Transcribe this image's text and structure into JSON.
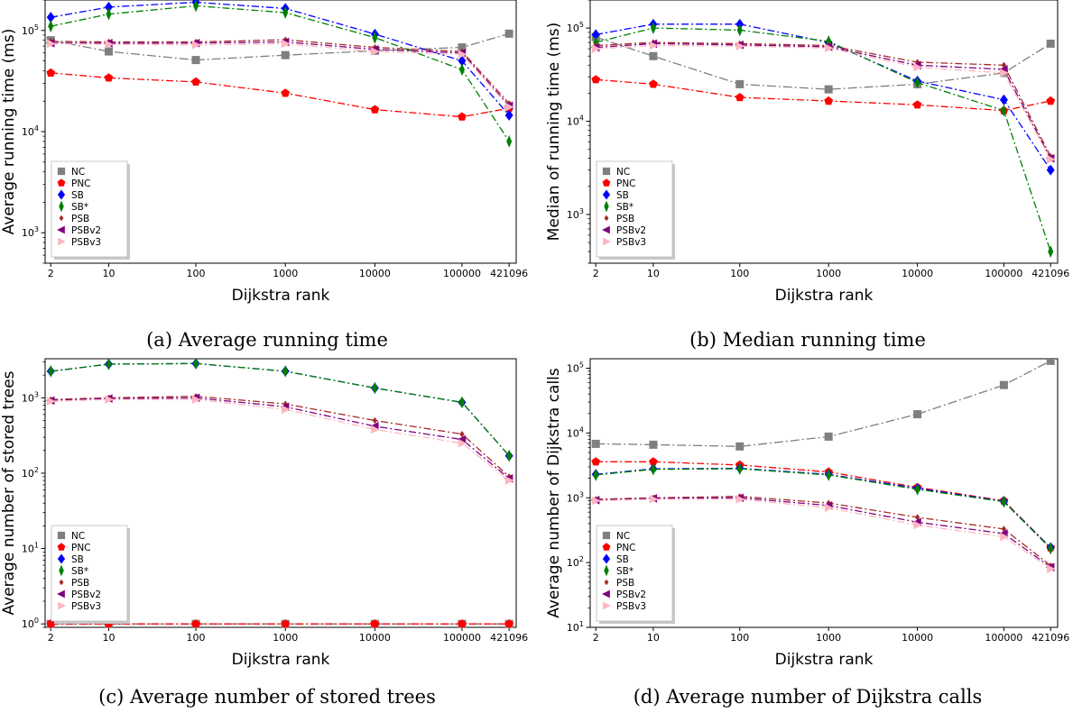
{
  "chart_data": [
    {
      "type": "line",
      "panel": "a",
      "caption": "(a) Average running time",
      "xlabel": "Dijkstra rank",
      "ylabel": "Average running time (ms)",
      "yscale": "log",
      "ylim": [
        500,
        200000
      ],
      "x": [
        "2",
        "10",
        "100",
        "1000",
        "10000",
        "100000",
        "421096"
      ],
      "xtick_labels": [
        "2",
        "10",
        "100",
        "1000",
        "10000",
        "100000",
        "421096"
      ],
      "ytick_labels": [
        {
          "base": "10",
          "exp": "3",
          "value": 1000
        },
        {
          "base": "10",
          "exp": "4",
          "value": 10000
        },
        {
          "base": "10",
          "exp": "5",
          "value": 100000
        }
      ],
      "legend_position": "lower-left",
      "series": [
        {
          "name": "NC",
          "values": [
            80000,
            62000,
            51000,
            57000,
            63000,
            68000,
            93000
          ]
        },
        {
          "name": "PNC",
          "values": [
            38000,
            34000,
            31000,
            24000,
            16500,
            14000,
            17000
          ]
        },
        {
          "name": "SB",
          "values": [
            135000,
            170000,
            190000,
            165000,
            92000,
            50000,
            14500
          ]
        },
        {
          "name": "SB*",
          "values": [
            110000,
            145000,
            175000,
            150000,
            85000,
            41000,
            8000
          ]
        },
        {
          "name": "PSB",
          "values": [
            78000,
            77000,
            77000,
            81000,
            68000,
            62000,
            19000
          ]
        },
        {
          "name": "PSBv2",
          "values": [
            75000,
            75000,
            75000,
            77000,
            65000,
            60000,
            18000
          ]
        },
        {
          "name": "PSBv3",
          "values": [
            74000,
            73000,
            72000,
            74000,
            62000,
            58000,
            17500
          ]
        }
      ]
    },
    {
      "type": "line",
      "panel": "b",
      "caption": "(b) Median running time",
      "xlabel": "Dijkstra rank",
      "ylabel": "Median of running time (ms)",
      "yscale": "log",
      "ylim": [
        300,
        200000
      ],
      "x": [
        "2",
        "10",
        "100",
        "1000",
        "10000",
        "100000",
        "421096"
      ],
      "xtick_labels": [
        "2",
        "10",
        "100",
        "1000",
        "10000",
        "100000",
        "421096"
      ],
      "ytick_labels": [
        {
          "base": "10",
          "exp": "3",
          "value": 1000
        },
        {
          "base": "10",
          "exp": "4",
          "value": 10000
        },
        {
          "base": "10",
          "exp": "5",
          "value": 100000
        }
      ],
      "legend_position": "lower-left",
      "series": [
        {
          "name": "NC",
          "values": [
            80000,
            50000,
            25000,
            22000,
            25000,
            33000,
            68000
          ]
        },
        {
          "name": "PNC",
          "values": [
            28000,
            25000,
            18000,
            16500,
            15000,
            13000,
            16500
          ]
        },
        {
          "name": "SB",
          "values": [
            85000,
            110000,
            110000,
            70000,
            27000,
            17000,
            3000
          ]
        },
        {
          "name": "SB*",
          "values": [
            70000,
            100000,
            95000,
            72000,
            26000,
            13000,
            400
          ]
        },
        {
          "name": "PSB",
          "values": [
            65000,
            70000,
            68000,
            65000,
            43000,
            40000,
            4200
          ]
        },
        {
          "name": "PSBv2",
          "values": [
            62000,
            68000,
            66000,
            63000,
            40000,
            36000,
            4000
          ]
        },
        {
          "name": "PSBv3",
          "values": [
            60000,
            65000,
            64000,
            61000,
            38000,
            33000,
            3900
          ]
        }
      ]
    },
    {
      "type": "line",
      "panel": "c",
      "caption": "(c) Average number of stored trees",
      "xlabel": "Dijkstra rank",
      "ylabel": "Average number of stored trees",
      "yscale": "log",
      "ylim": [
        0.9,
        3300
      ],
      "x": [
        "2",
        "10",
        "100",
        "1000",
        "10000",
        "100000",
        "421096"
      ],
      "xtick_labels": [
        "2",
        "10",
        "100",
        "1000",
        "10000",
        "100000",
        "421096"
      ],
      "ytick_labels": [
        {
          "base": "10",
          "exp": "0",
          "value": 1
        },
        {
          "base": "10",
          "exp": "1",
          "value": 10
        },
        {
          "base": "10",
          "exp": "2",
          "value": 100
        },
        {
          "base": "10",
          "exp": "3",
          "value": 1000
        }
      ],
      "legend_position": "lower-left",
      "series": [
        {
          "name": "NC",
          "values": [
            1,
            1,
            1,
            1,
            1,
            1,
            1
          ]
        },
        {
          "name": "PNC",
          "values": [
            1,
            1,
            1,
            1,
            1,
            1,
            1
          ]
        },
        {
          "name": "SB",
          "values": [
            2250,
            2800,
            2850,
            2250,
            1350,
            870,
            170
          ]
        },
        {
          "name": "SB*",
          "values": [
            2250,
            2800,
            2850,
            2250,
            1350,
            870,
            170
          ]
        },
        {
          "name": "PSB",
          "values": [
            950,
            1000,
            1050,
            830,
            500,
            330,
            90
          ]
        },
        {
          "name": "PSBv2",
          "values": [
            920,
            980,
            1000,
            760,
            420,
            280,
            85
          ]
        },
        {
          "name": "PSBv3",
          "values": [
            900,
            950,
            950,
            700,
            380,
            250,
            80
          ]
        }
      ]
    },
    {
      "type": "line",
      "panel": "d",
      "caption": "(d) Average number of Dijkstra calls",
      "xlabel": "Dijkstra rank",
      "ylabel": "Average number of Dijkstra calls",
      "yscale": "log",
      "ylim": [
        10,
        140000
      ],
      "x": [
        "2",
        "10",
        "100",
        "1000",
        "10000",
        "100000",
        "421096"
      ],
      "xtick_labels": [
        "2",
        "10",
        "100",
        "1000",
        "10000",
        "100000",
        "421096"
      ],
      "ytick_labels": [
        {
          "base": "10",
          "exp": "1",
          "value": 10
        },
        {
          "base": "10",
          "exp": "2",
          "value": 100
        },
        {
          "base": "10",
          "exp": "3",
          "value": 1000
        },
        {
          "base": "10",
          "exp": "4",
          "value": 10000
        },
        {
          "base": "10",
          "exp": "5",
          "value": 100000
        }
      ],
      "legend_position": "lower-left",
      "series": [
        {
          "name": "NC",
          "values": [
            6800,
            6600,
            6200,
            8800,
            19500,
            55000,
            130000
          ]
        },
        {
          "name": "PNC",
          "values": [
            3600,
            3600,
            3200,
            2500,
            1450,
            900,
            170
          ]
        },
        {
          "name": "SB",
          "values": [
            2300,
            2800,
            2850,
            2300,
            1400,
            880,
            170
          ]
        },
        {
          "name": "SB*",
          "values": [
            2250,
            2750,
            2800,
            2250,
            1350,
            870,
            165
          ]
        },
        {
          "name": "PSB",
          "values": [
            950,
            1000,
            1050,
            830,
            500,
            330,
            90
          ]
        },
        {
          "name": "PSBv2",
          "values": [
            920,
            980,
            1000,
            760,
            420,
            280,
            85
          ]
        },
        {
          "name": "PSBv3",
          "values": [
            900,
            950,
            950,
            700,
            380,
            250,
            80
          ]
        }
      ]
    }
  ],
  "series_styles": {
    "NC": {
      "color": "#7f7f7f",
      "marker": "square",
      "dash": "10,3,2,3"
    },
    "PNC": {
      "color": "#ff0000",
      "marker": "pentagon",
      "dash": "8,3,2,3"
    },
    "SB": {
      "color": "#0000ff",
      "marker": "diamond",
      "dash": "8,3,2,3"
    },
    "SB*": {
      "color": "#008000",
      "marker": "thin-diamond",
      "dash": "8,3,2,3"
    },
    "PSB": {
      "color": "#a52a2a",
      "marker": "small-diamond",
      "dash": "8,3,2,3"
    },
    "PSBv2": {
      "color": "#800080",
      "marker": "triangle-left",
      "dash": "8,3,2,3"
    },
    "PSBv3": {
      "color": "#ffb6c1",
      "marker": "triangle-right",
      "dash": "8,3,2,3"
    }
  }
}
